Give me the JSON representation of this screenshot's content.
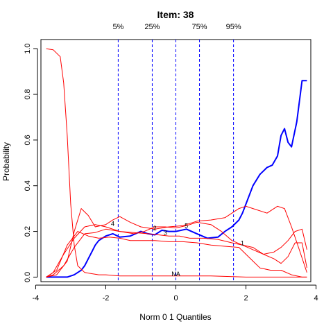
{
  "chart_data": {
    "type": "line",
    "title": "Item:  38",
    "xlabel": "Norm 0 1 Quantiles",
    "ylabel": "Probability",
    "xlim": [
      -3.85,
      3.85
    ],
    "ylim": [
      -0.02,
      1.04
    ],
    "xticks": [
      -4,
      -2,
      0,
      2,
      4
    ],
    "yticks": [
      0.0,
      0.2,
      0.4,
      0.6,
      0.8,
      1.0
    ],
    "x_tick_labels": [
      "-4",
      "-2",
      "0",
      "2",
      "4"
    ],
    "y_tick_labels": [
      "0.0",
      "0.2",
      "0.4",
      "0.6",
      "0.8",
      "1.0"
    ],
    "grid": false,
    "quantile_lines": [
      {
        "label": "5%",
        "x": -1.645
      },
      {
        "label": "25%",
        "x": -0.674
      },
      {
        "label": "",
        "x": 0.0
      },
      {
        "label": "75%",
        "x": 0.674
      },
      {
        "label": "95%",
        "x": 1.645
      }
    ],
    "series": [
      {
        "color": "#0000ff",
        "width": 2,
        "x": [
          -3.7,
          -3.4,
          -3.1,
          -2.9,
          -2.8,
          -2.7,
          -2.6,
          -2.5,
          -2.4,
          -2.3,
          -2.2,
          -2.0,
          -1.8,
          -1.6,
          -1.3,
          -1.0,
          -0.8,
          -0.6,
          -0.4,
          -0.2,
          0.0,
          0.3,
          0.6,
          0.9,
          1.2,
          1.4,
          1.6,
          1.8,
          1.9,
          2.0,
          2.2,
          2.4,
          2.6,
          2.75,
          2.9,
          3.0,
          3.1,
          3.2,
          3.3,
          3.45,
          3.6,
          3.74
        ],
        "y": [
          0.0,
          0.0,
          0.0,
          0.01,
          0.02,
          0.03,
          0.05,
          0.08,
          0.11,
          0.14,
          0.16,
          0.18,
          0.19,
          0.175,
          0.18,
          0.2,
          0.19,
          0.185,
          0.205,
          0.2,
          0.2,
          0.21,
          0.19,
          0.17,
          0.175,
          0.2,
          0.22,
          0.25,
          0.28,
          0.32,
          0.4,
          0.45,
          0.48,
          0.49,
          0.53,
          0.62,
          0.65,
          0.59,
          0.57,
          0.68,
          0.86,
          0.86
        ]
      },
      {
        "color": "#ff0000",
        "width": 1,
        "x": [
          -3.7,
          -3.5,
          -3.3,
          -3.2,
          -3.1,
          -3.0,
          -2.9,
          -2.8,
          -2.6,
          -2.4,
          -2.2,
          -2.0,
          -1.6,
          -1.0,
          0.0,
          1.0,
          2.0,
          3.0,
          3.74
        ],
        "y": [
          1.0,
          0.995,
          0.965,
          0.85,
          0.62,
          0.32,
          0.14,
          0.05,
          0.02,
          0.015,
          0.01,
          0.01,
          0.005,
          0.005,
          0.005,
          0.005,
          0.0,
          0.0,
          0.0
        ]
      },
      {
        "color": "#ff0000",
        "width": 1,
        "x": [
          -3.7,
          -3.4,
          -3.1,
          -2.9,
          -2.7,
          -2.5,
          -2.3,
          -2.0,
          -1.8,
          -1.6,
          -1.3,
          -1.0,
          -0.6,
          -0.2,
          0.2,
          0.6,
          1.0,
          1.4,
          1.8,
          2.0,
          2.2,
          2.6,
          2.9,
          3.1,
          3.3,
          3.5,
          3.74
        ],
        "y": [
          0.0,
          0.01,
          0.07,
          0.2,
          0.3,
          0.27,
          0.22,
          0.23,
          0.25,
          0.265,
          0.24,
          0.22,
          0.21,
          0.22,
          0.225,
          0.245,
          0.25,
          0.26,
          0.3,
          0.31,
          0.3,
          0.28,
          0.31,
          0.3,
          0.22,
          0.13,
          0.02
        ]
      },
      {
        "color": "#ff0000",
        "width": 1,
        "x": [
          -3.7,
          -3.5,
          -3.2,
          -2.9,
          -2.6,
          -2.3,
          -2.0,
          -1.6,
          -1.2,
          -0.9,
          -0.6,
          -0.3,
          0.0,
          0.3,
          0.6,
          1.0,
          1.3,
          1.6,
          1.9,
          2.2,
          2.5,
          2.8,
          3.0,
          3.2,
          3.4,
          3.6,
          3.74
        ],
        "y": [
          0.0,
          0.02,
          0.1,
          0.17,
          0.22,
          0.23,
          0.22,
          0.2,
          0.19,
          0.2,
          0.22,
          0.22,
          0.215,
          0.225,
          0.24,
          0.23,
          0.2,
          0.16,
          0.14,
          0.12,
          0.1,
          0.11,
          0.13,
          0.16,
          0.2,
          0.21,
          0.12
        ]
      },
      {
        "color": "#ff0000",
        "width": 1,
        "x": [
          -3.7,
          -3.5,
          -3.2,
          -2.9,
          -2.6,
          -2.3,
          -2.0,
          -1.6,
          -1.2,
          -0.8,
          -0.5,
          -0.2,
          0.1,
          0.4,
          0.8,
          1.2,
          1.6,
          1.9,
          2.2,
          2.5,
          2.8,
          3.0,
          3.2,
          3.4,
          3.6,
          3.74
        ],
        "y": [
          0.0,
          0.01,
          0.05,
          0.13,
          0.19,
          0.195,
          0.21,
          0.2,
          0.195,
          0.19,
          0.185,
          0.18,
          0.18,
          0.17,
          0.17,
          0.165,
          0.15,
          0.14,
          0.13,
          0.1,
          0.08,
          0.06,
          0.09,
          0.15,
          0.15,
          0.04
        ]
      },
      {
        "color": "#ff0000",
        "width": 1,
        "x": [
          -3.7,
          -3.4,
          -3.1,
          -2.8,
          -2.5,
          -2.2,
          -1.9,
          -1.6,
          -1.3,
          -1.0,
          -0.6,
          -0.2,
          0.2,
          0.6,
          1.0,
          1.4,
          1.8,
          2.0,
          2.2,
          2.4,
          2.7,
          3.0,
          3.3,
          3.6,
          3.74
        ],
        "y": [
          0.0,
          0.03,
          0.14,
          0.2,
          0.18,
          0.17,
          0.175,
          0.17,
          0.16,
          0.16,
          0.16,
          0.155,
          0.155,
          0.15,
          0.14,
          0.135,
          0.13,
          0.1,
          0.07,
          0.04,
          0.03,
          0.03,
          0.01,
          0.0,
          0.0
        ]
      }
    ],
    "curve_labels": [
      {
        "text": "4",
        "x": -1.8,
        "y": 0.225
      },
      {
        "text": "2",
        "x": -0.6,
        "y": 0.205
      },
      {
        "text": "3",
        "x": -0.3,
        "y": 0.185
      },
      {
        "text": "5",
        "x": 0.3,
        "y": 0.215
      },
      {
        "text": "1",
        "x": 1.9,
        "y": 0.14
      },
      {
        "text": "NA",
        "x": 0.0,
        "y": 0.005
      }
    ]
  }
}
